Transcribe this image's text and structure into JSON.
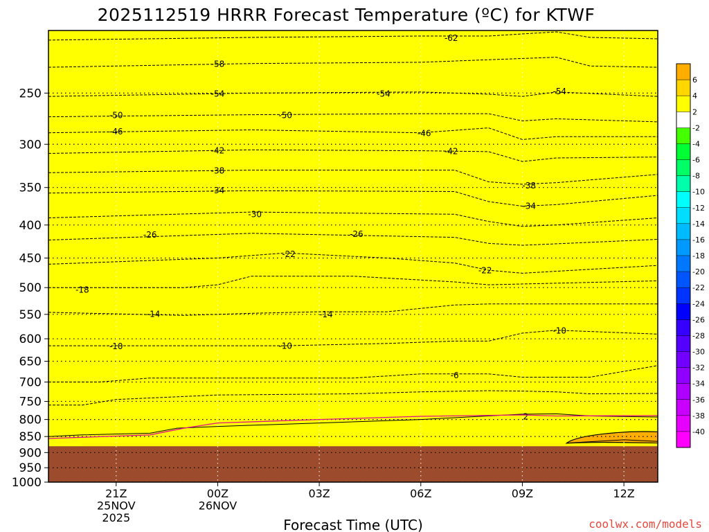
{
  "chart_data": {
    "type": "heatmap",
    "title": "2025112519 HRRR Forecast Temperature (ºC) for KTWF",
    "xlabel": "Forecast Time (UTC)",
    "ylabel": "",
    "y_scale": "log-pressure",
    "ylim": [
      1000,
      200
    ],
    "xlim": [
      19,
      37
    ],
    "yticks": [
      250,
      300,
      350,
      400,
      450,
      500,
      550,
      600,
      650,
      700,
      750,
      800,
      850,
      900,
      950,
      1000
    ],
    "xticks": [
      {
        "value": 21,
        "lines": [
          "21Z",
          "25NOV",
          "2025"
        ]
      },
      {
        "value": 24,
        "lines": [
          "00Z",
          "26NOV"
        ]
      },
      {
        "value": 27,
        "lines": [
          "03Z"
        ]
      },
      {
        "value": 30,
        "lines": [
          "06Z"
        ]
      },
      {
        "value": 33,
        "lines": [
          "09Z"
        ]
      },
      {
        "value": 36,
        "lines": [
          "12Z"
        ]
      }
    ],
    "grid": true,
    "ground_level_hpa": 880,
    "colorbar": {
      "levels": [
        -40,
        -38,
        -36,
        -34,
        -32,
        -30,
        -28,
        -26,
        -24,
        -22,
        -20,
        -18,
        -16,
        -14,
        -12,
        -10,
        -8,
        -6,
        -4,
        -2,
        2,
        4,
        6
      ],
      "labels": [
        "-40",
        "-38",
        "-36",
        "-34",
        "-32",
        "-30",
        "-28",
        "-26",
        "-24",
        "-22",
        "-20",
        "-18",
        "-16",
        "-14",
        "-12",
        "-10",
        "-8",
        "-6",
        "-4",
        "-2",
        "2",
        "4",
        "6"
      ]
    },
    "contours": [
      {
        "value": -62,
        "label": "-62",
        "p": [
          [
            19,
            207
          ],
          [
            25,
            205
          ],
          [
            30,
            204
          ],
          [
            32,
            204
          ],
          [
            34,
            201
          ],
          [
            35,
            205
          ],
          [
            37,
            206
          ]
        ],
        "labels": [
          [
            30.9,
            205
          ]
        ]
      },
      {
        "value": -58,
        "label": "-58",
        "p": [
          [
            19,
            228
          ],
          [
            25,
            225
          ],
          [
            30,
            224
          ],
          [
            34,
            220
          ],
          [
            35,
            227
          ],
          [
            37,
            228
          ]
        ],
        "labels": [
          [
            24,
            225
          ]
        ]
      },
      {
        "value": -54,
        "label": "-54",
        "p": [
          [
            19,
            253
          ],
          [
            25,
            250
          ],
          [
            30,
            249
          ],
          [
            32,
            251
          ],
          [
            33,
            253
          ],
          [
            34,
            249
          ],
          [
            37,
            253
          ]
        ],
        "labels": [
          [
            24,
            250
          ],
          [
            28.9,
            250
          ],
          [
            34.1,
            248
          ]
        ]
      },
      {
        "value": -50,
        "label": "-50",
        "p": [
          [
            19,
            272
          ],
          [
            25,
            270
          ],
          [
            30,
            269
          ],
          [
            32,
            269
          ],
          [
            33,
            276
          ],
          [
            34,
            274
          ],
          [
            37,
            277
          ]
        ],
        "labels": [
          [
            21,
            270
          ],
          [
            26,
            270
          ]
        ]
      },
      {
        "value": -46,
        "label": "-46",
        "p": [
          [
            19,
            288
          ],
          [
            25,
            285
          ],
          [
            30,
            288
          ],
          [
            32,
            283
          ],
          [
            33,
            295
          ],
          [
            34,
            292
          ],
          [
            37,
            292
          ]
        ],
        "labels": [
          [
            21,
            286
          ],
          [
            30.1,
            288
          ]
        ]
      },
      {
        "value": -42,
        "label": "-42",
        "p": [
          [
            19,
            310
          ],
          [
            25,
            306
          ],
          [
            30,
            307
          ],
          [
            32,
            308
          ],
          [
            33,
            319
          ],
          [
            34,
            315
          ],
          [
            37,
            314
          ]
        ],
        "labels": [
          [
            24,
            306
          ],
          [
            30.9,
            307
          ]
        ]
      },
      {
        "value": -38,
        "label": "-38",
        "p": [
          [
            19,
            332
          ],
          [
            25,
            329
          ],
          [
            31,
            329
          ],
          [
            32,
            343
          ],
          [
            33,
            346
          ],
          [
            34,
            344
          ],
          [
            37,
            334
          ]
        ],
        "labels": [
          [
            24,
            329
          ],
          [
            33.2,
            347
          ]
        ]
      },
      {
        "value": -34,
        "label": "-34",
        "p": [
          [
            19,
            357
          ],
          [
            25,
            354
          ],
          [
            31,
            355
          ],
          [
            32,
            368
          ],
          [
            33,
            374
          ],
          [
            34,
            372
          ],
          [
            37,
            360
          ]
        ],
        "labels": [
          [
            24,
            353
          ],
          [
            33.2,
            373
          ]
        ]
      },
      {
        "value": -30,
        "label": "-30",
        "p": [
          [
            19,
            390
          ],
          [
            25,
            382
          ],
          [
            31,
            385
          ],
          [
            32,
            395
          ],
          [
            33,
            402
          ],
          [
            34,
            400
          ],
          [
            37,
            390
          ]
        ],
        "labels": [
          [
            25.1,
            384
          ]
        ]
      },
      {
        "value": -26,
        "label": "-26",
        "p": [
          [
            19,
            422
          ],
          [
            25,
            412
          ],
          [
            31,
            418
          ],
          [
            32,
            427
          ],
          [
            33,
            430
          ],
          [
            37,
            421
          ]
        ],
        "labels": [
          [
            22,
            413
          ],
          [
            28.1,
            412
          ]
        ]
      },
      {
        "value": -22,
        "label": "-22",
        "p": [
          [
            19,
            460
          ],
          [
            24,
            450
          ],
          [
            26,
            442
          ],
          [
            29,
            450
          ],
          [
            31,
            458
          ],
          [
            32,
            470
          ],
          [
            33,
            475
          ],
          [
            37,
            462
          ]
        ],
        "labels": [
          [
            26.1,
            443
          ],
          [
            31.9,
            469
          ]
        ]
      },
      {
        "value": -18,
        "label": "-18",
        "p": [
          [
            19,
            500
          ],
          [
            23,
            500
          ],
          [
            24,
            495
          ],
          [
            25,
            480
          ],
          [
            28,
            480
          ],
          [
            31,
            490
          ],
          [
            32,
            495
          ],
          [
            37,
            488
          ]
        ],
        "labels": [
          [
            20,
            503
          ]
        ]
      },
      {
        "value": -14,
        "label": "-14",
        "p": [
          [
            19,
            546
          ],
          [
            23,
            552
          ],
          [
            25,
            548
          ],
          [
            27,
            545
          ],
          [
            29,
            545
          ],
          [
            31,
            532
          ],
          [
            32,
            530
          ],
          [
            37,
            530
          ]
        ],
        "labels": [
          [
            22.1,
            548
          ],
          [
            27.2,
            549
          ]
        ]
      },
      {
        "value": -10,
        "label": "-10",
        "p": [
          [
            19,
            615
          ],
          [
            24,
            615
          ],
          [
            26,
            615
          ],
          [
            29,
            610
          ],
          [
            31,
            605
          ],
          [
            32,
            605
          ],
          [
            33,
            588
          ],
          [
            34,
            582
          ],
          [
            37,
            590
          ]
        ],
        "labels": [
          [
            21,
            615
          ],
          [
            26,
            614
          ],
          [
            34.1,
            582
          ]
        ]
      },
      {
        "value": -6,
        "label": "-6",
        "p": [
          [
            19,
            700
          ],
          [
            20.5,
            700
          ],
          [
            22,
            690
          ],
          [
            24,
            690
          ],
          [
            28,
            690
          ],
          [
            30,
            680
          ],
          [
            32,
            680
          ],
          [
            33,
            688
          ],
          [
            35,
            688
          ],
          [
            37,
            660
          ]
        ],
        "labels": [
          [
            31,
            682
          ]
        ]
      },
      {
        "value": -2,
        "label": "-2",
        "p": [
          [
            19,
            760
          ],
          [
            20,
            760
          ],
          [
            21,
            745
          ],
          [
            24,
            733
          ],
          [
            28,
            730
          ],
          [
            30,
            725
          ],
          [
            32,
            722
          ],
          [
            33,
            723
          ],
          [
            34,
            725
          ],
          [
            35,
            730
          ],
          [
            37,
            729
          ]
        ],
        "labels": []
      },
      {
        "value": 2,
        "label": "2",
        "p": [
          [
            19,
            850
          ],
          [
            20,
            845
          ],
          [
            22,
            840
          ],
          [
            22.8,
            825
          ],
          [
            24,
            820
          ],
          [
            30,
            800
          ],
          [
            33,
            785
          ],
          [
            34,
            784
          ],
          [
            35,
            790
          ],
          [
            37,
            793
          ]
        ],
        "labels": [
          [
            33.1,
            790
          ]
        ]
      },
      {
        "value": 6,
        "label": "6",
        "p": [
          [
            34.3,
            870
          ],
          [
            36,
            860
          ],
          [
            37,
            865
          ]
        ],
        "labels": []
      }
    ],
    "freezing_line": {
      "value": 0,
      "p": [
        [
          19,
          856
        ],
        [
          22,
          845
        ],
        [
          23,
          825
        ],
        [
          24,
          810
        ],
        [
          27,
          800
        ],
        [
          30,
          791
        ],
        [
          33,
          787
        ],
        [
          34,
          790
        ],
        [
          37,
          789
        ]
      ]
    },
    "band_fill": [
      {
        "above": -62,
        "color": "#ff00ff"
      },
      {
        "above": -38,
        "color": "#a010f0"
      },
      {
        "above": -34,
        "color": "#8215f0"
      },
      {
        "above": -30,
        "color": "#5028f0"
      },
      {
        "above": -26,
        "color": "#0022ee"
      },
      {
        "above": -22,
        "color": "#1656f2"
      },
      {
        "above": -18,
        "color": "#1c8cf5"
      },
      {
        "above": -14,
        "color": "#00eaf8"
      },
      {
        "above": -10,
        "color": "#14dca0"
      },
      {
        "above": -6,
        "color": "#28e040"
      },
      {
        "above": -2,
        "color": "#55f215"
      },
      {
        "above": 2,
        "color": "#ffffff"
      },
      {
        "above": 6,
        "color": "#ffff00"
      }
    ]
  },
  "colors": {
    "ground": "#9c4c2d",
    "freezing_line": "#e0108a",
    "contour": "#000000",
    "colorbar": [
      "#ff00ff",
      "#e600ff",
      "#c900ff",
      "#ad00ff",
      "#9000ff",
      "#7200ff",
      "#5400ff",
      "#3600ff",
      "#0000ff",
      "#0033ff",
      "#0055ff",
      "#0077ff",
      "#0099ff",
      "#00bbff",
      "#00ddff",
      "#00ffff",
      "#00ffaa",
      "#00ff66",
      "#00ff33",
      "#44ff00",
      "#ffffff",
      "#ffff00",
      "#ffd700",
      "#ffae00"
    ]
  },
  "credit": "coolwx.com/models"
}
